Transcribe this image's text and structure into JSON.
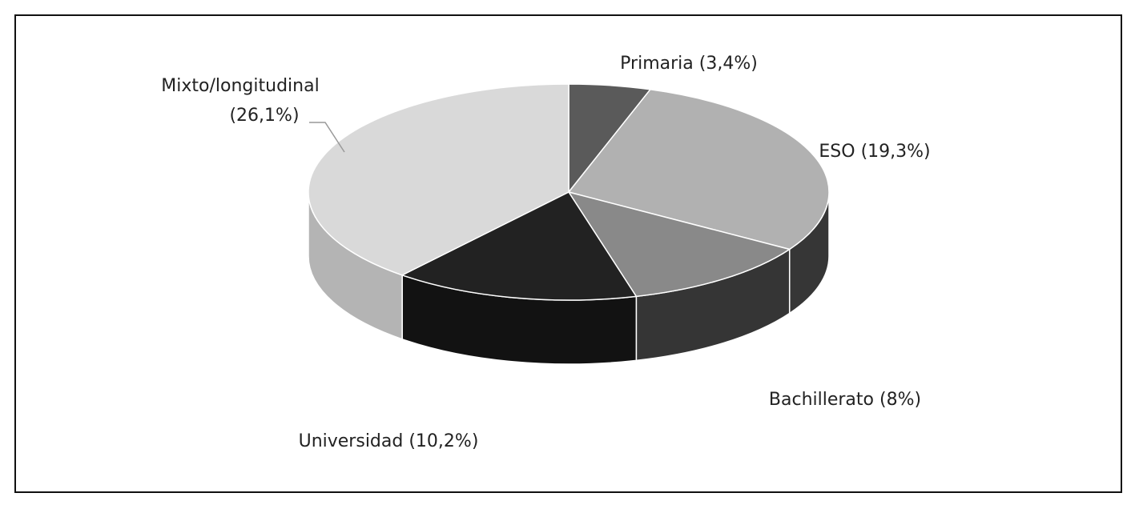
{
  "chart_data": {
    "type": "pie3d",
    "categories": [
      "Primaria",
      "ESO",
      "Bachillerato",
      "Universidad",
      "Mixto/longitudinal"
    ],
    "values": [
      3.4,
      19.3,
      8,
      10.2,
      26.1
    ],
    "value_labels": [
      "(3,4%)",
      "(19,3%)",
      "(8%)",
      "(10,2%)",
      "(26,1%)"
    ],
    "colors": [
      "#5a5a5a",
      "#b1b1b1",
      "#898989",
      "#222222",
      "#d9d9d9"
    ],
    "side_colors": [
      "#3a3a3a",
      "#363636",
      "#353535",
      "#121212",
      "#b4b4b4"
    ]
  }
}
